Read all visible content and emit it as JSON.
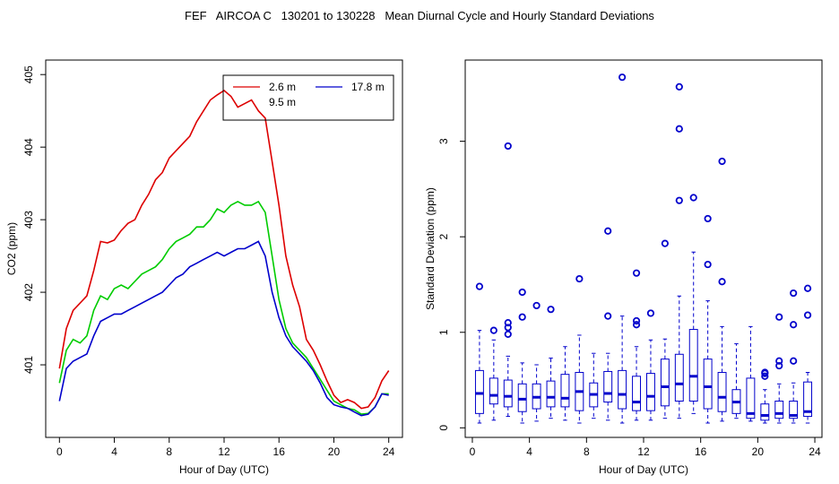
{
  "title": "FEF   AIRCOA C   130201 to 130228   Mean Diurnal Cycle and Hourly Standard Deviations",
  "chart_data": [
    {
      "type": "line",
      "title": "",
      "xlabel": "Hour of Day (UTC)",
      "ylabel": "CO2 (ppm)",
      "xlim": [
        -1,
        25
      ],
      "ylim": [
        400,
        405.2
      ],
      "xticks": [
        "0",
        "4",
        "8",
        "12",
        "16",
        "20",
        "24"
      ],
      "yticks": [
        "401",
        "402",
        "403",
        "404",
        "405"
      ],
      "legend": {
        "position": "top-right",
        "entries": [
          "2.6 m",
          "9.5 m",
          "17.8 m"
        ]
      },
      "series": [
        {
          "name": "2.6 m",
          "color": "#dd0000",
          "x": [
            0,
            0.5,
            1,
            1.5,
            2,
            2.5,
            3,
            3.5,
            4,
            4.5,
            5,
            5.5,
            6,
            6.5,
            7,
            7.5,
            8,
            8.5,
            9,
            9.5,
            10,
            10.5,
            11,
            11.5,
            12,
            12.5,
            13,
            13.5,
            14,
            14.5,
            15,
            15.5,
            16,
            16.5,
            17,
            17.5,
            18,
            18.5,
            19,
            19.5,
            20,
            20.5,
            21,
            21.5,
            22,
            22.5,
            23,
            23.5,
            24
          ],
          "values": [
            400.95,
            401.5,
            401.75,
            401.85,
            401.95,
            402.3,
            402.7,
            402.68,
            402.72,
            402.85,
            402.95,
            403.0,
            403.2,
            403.35,
            403.55,
            403.65,
            403.85,
            403.95,
            404.05,
            404.15,
            404.35,
            404.5,
            404.65,
            404.72,
            404.78,
            404.7,
            404.55,
            404.6,
            404.65,
            404.5,
            404.4,
            403.8,
            403.2,
            402.5,
            402.1,
            401.8,
            401.35,
            401.2,
            401.0,
            400.78,
            400.58,
            400.48,
            400.52,
            400.48,
            400.4,
            400.42,
            400.55,
            400.78,
            400.92
          ]
        },
        {
          "name": "9.5 m",
          "color": "#00cc00",
          "x": [
            0,
            0.5,
            1,
            1.5,
            2,
            2.5,
            3,
            3.5,
            4,
            4.5,
            5,
            5.5,
            6,
            6.5,
            7,
            7.5,
            8,
            8.5,
            9,
            9.5,
            10,
            10.5,
            11,
            11.5,
            12,
            12.5,
            13,
            13.5,
            14,
            14.5,
            15,
            15.5,
            16,
            16.5,
            17,
            17.5,
            18,
            18.5,
            19,
            19.5,
            20,
            20.5,
            21,
            21.5,
            22,
            22.5,
            23,
            23.5,
            24
          ],
          "values": [
            400.75,
            401.2,
            401.35,
            401.3,
            401.4,
            401.75,
            401.95,
            401.9,
            402.05,
            402.1,
            402.05,
            402.15,
            402.25,
            402.3,
            402.35,
            402.45,
            402.6,
            402.7,
            402.75,
            402.8,
            402.9,
            402.9,
            403.0,
            403.15,
            403.1,
            403.2,
            403.25,
            403.2,
            403.2,
            403.25,
            403.1,
            402.5,
            401.9,
            401.5,
            401.3,
            401.2,
            401.1,
            400.95,
            400.8,
            400.65,
            400.5,
            400.45,
            400.4,
            400.38,
            400.32,
            400.33,
            400.42,
            400.6,
            400.6
          ]
        },
        {
          "name": "17.8 m",
          "color": "#0000cc",
          "x": [
            0,
            0.5,
            1,
            1.5,
            2,
            2.5,
            3,
            3.5,
            4,
            4.5,
            5,
            5.5,
            6,
            6.5,
            7,
            7.5,
            8,
            8.5,
            9,
            9.5,
            10,
            10.5,
            11,
            11.5,
            12,
            12.5,
            13,
            13.5,
            14,
            14.5,
            15,
            15.5,
            16,
            16.5,
            17,
            17.5,
            18,
            18.5,
            19,
            19.5,
            20,
            20.5,
            21,
            21.5,
            22,
            22.5,
            23,
            23.5,
            24
          ],
          "values": [
            400.5,
            400.95,
            401.05,
            401.1,
            401.15,
            401.4,
            401.6,
            401.65,
            401.7,
            401.7,
            401.75,
            401.8,
            401.85,
            401.9,
            401.95,
            402.0,
            402.1,
            402.2,
            402.25,
            402.35,
            402.4,
            402.45,
            402.5,
            402.55,
            402.5,
            402.55,
            402.6,
            402.6,
            402.65,
            402.7,
            402.5,
            402.0,
            401.65,
            401.4,
            401.25,
            401.15,
            401.05,
            400.92,
            400.75,
            400.55,
            400.45,
            400.42,
            400.4,
            400.35,
            400.3,
            400.32,
            400.42,
            400.6,
            400.58
          ]
        }
      ]
    },
    {
      "type": "box",
      "title": "",
      "xlabel": "Hour of Day (UTC)",
      "ylabel": "Standard Deviation (ppm)",
      "xlim": [
        -0.5,
        24.5
      ],
      "ylim": [
        -0.1,
        3.85
      ],
      "xticks": [
        "0",
        "4",
        "8",
        "12",
        "16",
        "20",
        "24"
      ],
      "yticks": [
        "0",
        "1",
        "2",
        "3"
      ],
      "color": "#0000cc",
      "boxes": [
        {
          "x": 0.5,
          "lo": 0.05,
          "q1": 0.15,
          "med": 0.36,
          "q3": 0.6,
          "hi": 1.02,
          "out": [
            1.48
          ]
        },
        {
          "x": 1.5,
          "lo": 0.08,
          "q1": 0.25,
          "med": 0.34,
          "q3": 0.52,
          "hi": 0.92,
          "out": [
            1.02
          ]
        },
        {
          "x": 2.5,
          "lo": 0.12,
          "q1": 0.22,
          "med": 0.33,
          "q3": 0.5,
          "hi": 0.75,
          "out": [
            0.98,
            1.05,
            1.1,
            2.95
          ]
        },
        {
          "x": 3.5,
          "lo": 0.05,
          "q1": 0.17,
          "med": 0.3,
          "q3": 0.46,
          "hi": 0.68,
          "out": [
            1.16,
            1.42
          ]
        },
        {
          "x": 4.5,
          "lo": 0.07,
          "q1": 0.2,
          "med": 0.32,
          "q3": 0.46,
          "hi": 0.66,
          "out": [
            1.28
          ]
        },
        {
          "x": 5.5,
          "lo": 0.1,
          "q1": 0.22,
          "med": 0.32,
          "q3": 0.49,
          "hi": 0.73,
          "out": [
            1.24
          ]
        },
        {
          "x": 6.5,
          "lo": 0.08,
          "q1": 0.22,
          "med": 0.31,
          "q3": 0.56,
          "hi": 0.85,
          "out": []
        },
        {
          "x": 7.5,
          "lo": 0.05,
          "q1": 0.18,
          "med": 0.38,
          "q3": 0.58,
          "hi": 0.97,
          "out": [
            1.56
          ]
        },
        {
          "x": 8.5,
          "lo": 0.1,
          "q1": 0.22,
          "med": 0.35,
          "q3": 0.47,
          "hi": 0.78,
          "out": []
        },
        {
          "x": 9.5,
          "lo": 0.08,
          "q1": 0.27,
          "med": 0.36,
          "q3": 0.59,
          "hi": 0.78,
          "out": [
            1.17,
            2.06
          ]
        },
        {
          "x": 10.5,
          "lo": 0.05,
          "q1": 0.2,
          "med": 0.35,
          "q3": 0.6,
          "hi": 1.17,
          "out": [
            3.67
          ]
        },
        {
          "x": 11.5,
          "lo": 0.08,
          "q1": 0.18,
          "med": 0.27,
          "q3": 0.54,
          "hi": 0.85,
          "out": [
            1.08,
            1.12,
            1.62
          ]
        },
        {
          "x": 12.5,
          "lo": 0.08,
          "q1": 0.18,
          "med": 0.33,
          "q3": 0.57,
          "hi": 0.92,
          "out": [
            1.2
          ]
        },
        {
          "x": 13.5,
          "lo": 0.1,
          "q1": 0.23,
          "med": 0.43,
          "q3": 0.72,
          "hi": 0.93,
          "out": [
            1.93
          ]
        },
        {
          "x": 14.5,
          "lo": 0.1,
          "q1": 0.28,
          "med": 0.46,
          "q3": 0.77,
          "hi": 1.38,
          "out": [
            2.38,
            3.13,
            3.57
          ]
        },
        {
          "x": 15.5,
          "lo": 0.15,
          "q1": 0.28,
          "med": 0.54,
          "q3": 1.03,
          "hi": 1.84,
          "out": [
            2.41
          ]
        },
        {
          "x": 16.5,
          "lo": 0.05,
          "q1": 0.2,
          "med": 0.43,
          "q3": 0.72,
          "hi": 1.33,
          "out": [
            1.71,
            2.19
          ]
        },
        {
          "x": 17.5,
          "lo": 0.07,
          "q1": 0.17,
          "med": 0.32,
          "q3": 0.58,
          "hi": 1.06,
          "out": [
            1.53,
            2.79
          ]
        },
        {
          "x": 18.5,
          "lo": 0.1,
          "q1": 0.15,
          "med": 0.27,
          "q3": 0.4,
          "hi": 0.88,
          "out": []
        },
        {
          "x": 19.5,
          "lo": 0.07,
          "q1": 0.1,
          "med": 0.15,
          "q3": 0.52,
          "hi": 1.06,
          "out": []
        },
        {
          "x": 20.5,
          "lo": 0.05,
          "q1": 0.08,
          "med": 0.13,
          "q3": 0.25,
          "hi": 0.4,
          "out": [
            0.54,
            0.57,
            0.58
          ]
        },
        {
          "x": 21.5,
          "lo": 0.05,
          "q1": 0.1,
          "med": 0.15,
          "q3": 0.28,
          "hi": 0.46,
          "out": [
            0.65,
            0.7,
            1.16
          ]
        },
        {
          "x": 22.5,
          "lo": 0.05,
          "q1": 0.1,
          "med": 0.13,
          "q3": 0.28,
          "hi": 0.47,
          "out": [
            0.7,
            1.08,
            1.41
          ]
        },
        {
          "x": 23.5,
          "lo": 0.05,
          "q1": 0.12,
          "med": 0.17,
          "q3": 0.48,
          "hi": 0.58,
          "out": [
            1.18,
            1.46
          ]
        }
      ]
    }
  ]
}
